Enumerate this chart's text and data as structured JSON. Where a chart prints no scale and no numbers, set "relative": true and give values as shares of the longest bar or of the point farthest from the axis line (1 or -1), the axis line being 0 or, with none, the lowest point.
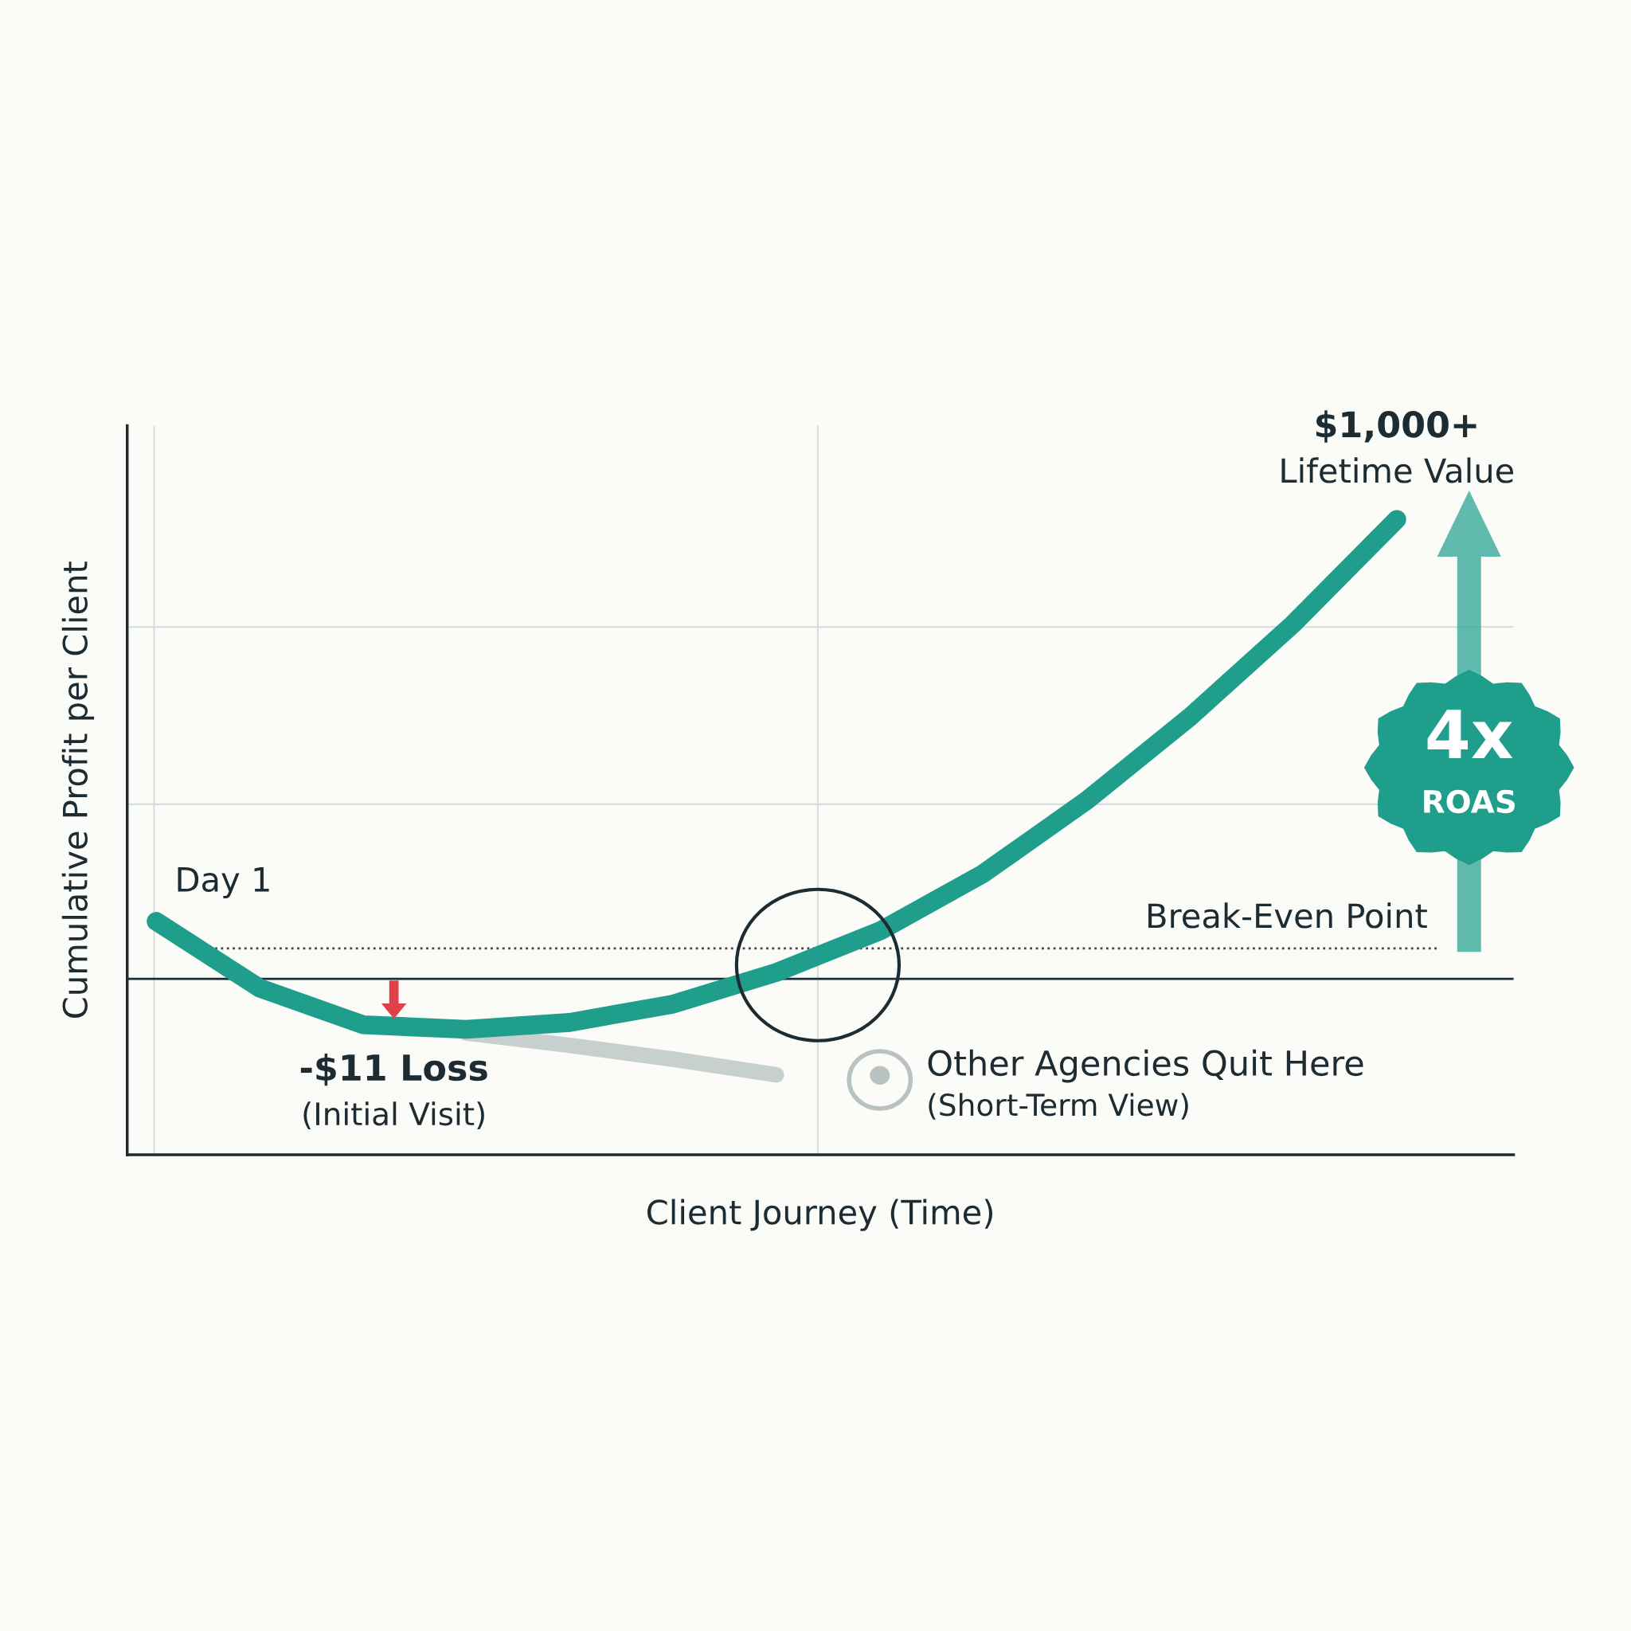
{
  "chart_data": {
    "type": "line",
    "relative": true,
    "xlabel": "Client Journey (Time)",
    "ylabel": "Cumulative Profit per Client",
    "categories": [
      null,
      null,
      null,
      null,
      null,
      null,
      null,
      null,
      null,
      null,
      null,
      null,
      null
    ],
    "series": [
      {
        "color": "#1f9e8c",
        "values": [
          0.125,
          -0.02,
          -0.1,
          -0.11,
          -0.095,
          -0.055,
          0.014,
          0.104,
          0.229,
          0.388,
          0.57,
          0.773,
          1
        ]
      },
      {
        "color": "#c8cfcf",
        "values": [
          null,
          null,
          null,
          -0.118,
          -0.145,
          -0.175,
          -0.209,
          null,
          null,
          null,
          null,
          null,
          null
        ]
      }
    ],
    "ref_lines": [
      {
        "axis": "y",
        "value": 0.066,
        "label": "Break-Even Point",
        "color": "#444444",
        "line_style": "dotted"
      }
    ],
    "annotations": [
      "Day 1",
      "-$11 Loss",
      "(Initial Visit)",
      "Other Agencies Quit Here",
      "(Short-Term View)",
      "$1,000+",
      "Lifetime Value",
      "4x",
      "ROAS"
    ],
    "line_style": "solid"
  }
}
